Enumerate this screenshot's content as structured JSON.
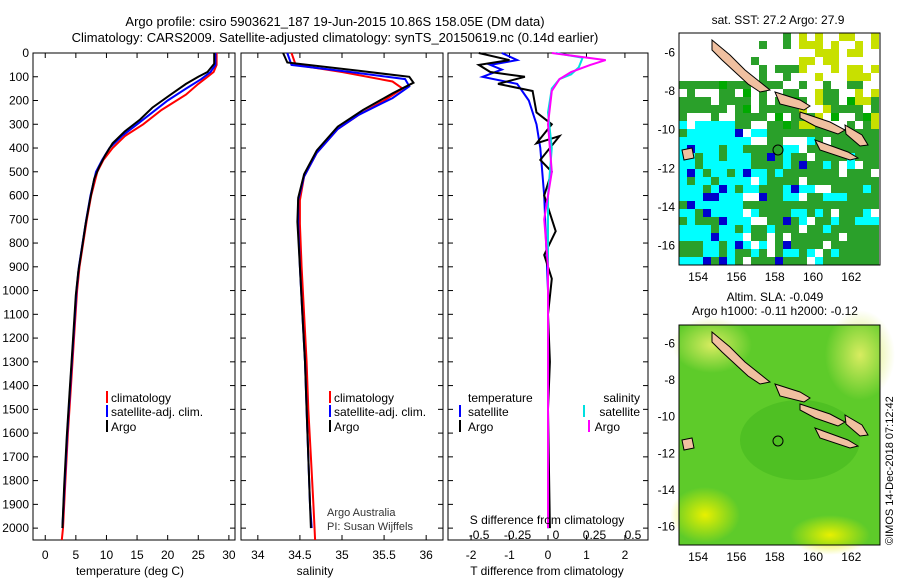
{
  "title": {
    "line1": "Argo profile: csiro 5903621_187 19-Jun-2015 10.86S 158.05E (DM data)",
    "line2": "Climatology: CARS2009. Satellite-adjusted climatology: synTS_20150619.nc (0.14d earlier)"
  },
  "credit": {
    "org": "Argo Australia",
    "pi": "PI: Susan Wijffels",
    "stamp": "©IMOS 14-Dec-2018 07:12:42"
  },
  "legends": {
    "climatology": "climatology",
    "satellite_adj": "satellite-adj. clim.",
    "argo": "Argo",
    "temperature": "temperature",
    "salinity": "salinity",
    "satellite": "satellite"
  },
  "colors": {
    "climatology": "#ff0000",
    "satellite": "#0000ff",
    "argo": "#000000",
    "sal_satellite": "#00e0e0",
    "sal_argo": "#ff00ff",
    "map_deep": "#2aa02a",
    "map_light": "#c8e000",
    "map_cyan": "#00ffff",
    "land": "#f0c0a0"
  },
  "map_titles": {
    "sst": "sat. SST: 27.2 Argo: 27.9",
    "sla1": "Altim. SLA: -0.049",
    "sla2": "Argo h1000: -0.11 h2000: -0.12"
  },
  "chart_data": [
    {
      "type": "line",
      "panel": "temperature",
      "xlabel": "temperature (deg C)",
      "ylabel": "",
      "xlim": [
        -2,
        31
      ],
      "ylim": [
        2050,
        0
      ],
      "xticks": [
        0,
        5,
        10,
        15,
        20,
        25,
        30
      ],
      "yticks": [
        0,
        100,
        200,
        300,
        400,
        500,
        600,
        700,
        800,
        900,
        1000,
        1100,
        1200,
        1300,
        1400,
        1500,
        1600,
        1700,
        1800,
        1900,
        2000
      ],
      "series": [
        {
          "name": "climatology",
          "color": "#ff0000",
          "points": [
            [
              28,
              0
            ],
            [
              28,
              50
            ],
            [
              27.5,
              80
            ],
            [
              26.5,
              100
            ],
            [
              25,
              130
            ],
            [
              23,
              175
            ],
            [
              19,
              240
            ],
            [
              16,
              300
            ],
            [
              13,
              350
            ],
            [
              11,
              400
            ],
            [
              9.5,
              450
            ],
            [
              8.5,
              500
            ],
            [
              7.5,
              600
            ],
            [
              6.8,
              700
            ],
            [
              6.2,
              800
            ],
            [
              5.6,
              900
            ],
            [
              5.2,
              1000
            ],
            [
              4.7,
              1200
            ],
            [
              4.2,
              1400
            ],
            [
              3.7,
              1600
            ],
            [
              3.3,
              1800
            ],
            [
              2.9,
              2000
            ],
            [
              2.7,
              2050
            ]
          ]
        },
        {
          "name": "satellite-adj. clim.",
          "color": "#0000ff",
          "points": [
            [
              27.8,
              0
            ],
            [
              27.8,
              50
            ],
            [
              27,
              80
            ],
            [
              25.5,
              110
            ],
            [
              23,
              150
            ],
            [
              20,
              200
            ],
            [
              17,
              260
            ],
            [
              15,
              300
            ],
            [
              12.5,
              350
            ],
            [
              10.5,
              400
            ],
            [
              9.3,
              450
            ],
            [
              8.3,
              500
            ],
            [
              7.4,
              600
            ],
            [
              6.7,
              700
            ],
            [
              6.1,
              800
            ],
            [
              5.5,
              900
            ],
            [
              5.1,
              1000
            ],
            [
              4.6,
              1200
            ],
            [
              4.1,
              1400
            ],
            [
              3.6,
              1600
            ],
            [
              3.2,
              1800
            ],
            [
              2.8,
              2000
            ]
          ]
        },
        {
          "name": "Argo",
          "color": "#000000",
          "points": [
            [
              27.6,
              0
            ],
            [
              27.6,
              45
            ],
            [
              26.5,
              80
            ],
            [
              25,
              100
            ],
            [
              23,
              130
            ],
            [
              20.5,
              175
            ],
            [
              17.5,
              230
            ],
            [
              15.5,
              280
            ],
            [
              13,
              330
            ],
            [
              11,
              380
            ],
            [
              9.8,
              430
            ],
            [
              8.8,
              480
            ],
            [
              8,
              530
            ],
            [
              7.3,
              620
            ],
            [
              6.6,
              720
            ],
            [
              6,
              820
            ],
            [
              5.4,
              920
            ],
            [
              5,
              1020
            ],
            [
              4.5,
              1220
            ],
            [
              4,
              1420
            ],
            [
              3.5,
              1620
            ],
            [
              3.1,
              1820
            ],
            [
              2.8,
              2000
            ]
          ]
        }
      ]
    },
    {
      "type": "line",
      "panel": "salinity",
      "xlabel": "salinity",
      "xlim": [
        33.8,
        36.2
      ],
      "ylim": [
        2050,
        0
      ],
      "xticks": [
        34,
        34.5,
        35,
        35.5,
        36
      ],
      "series": [
        {
          "name": "climatology",
          "color": "#ff0000",
          "points": [
            [
              34.4,
              0
            ],
            [
              34.45,
              50
            ],
            [
              35.0,
              80
            ],
            [
              35.6,
              120
            ],
            [
              35.72,
              150
            ],
            [
              35.5,
              200
            ],
            [
              35.2,
              260
            ],
            [
              34.95,
              320
            ],
            [
              34.7,
              420
            ],
            [
              34.55,
              520
            ],
            [
              34.5,
              620
            ],
            [
              34.5,
              720
            ],
            [
              34.52,
              900
            ],
            [
              34.55,
              1100
            ],
            [
              34.58,
              1300
            ],
            [
              34.6,
              1500
            ],
            [
              34.63,
              1700
            ],
            [
              34.66,
              1900
            ],
            [
              34.68,
              2050
            ]
          ]
        },
        {
          "name": "satellite-adj. clim.",
          "color": "#0000ff",
          "points": [
            [
              34.35,
              0
            ],
            [
              34.4,
              50
            ],
            [
              35.1,
              80
            ],
            [
              35.75,
              110
            ],
            [
              35.8,
              140
            ],
            [
              35.6,
              190
            ],
            [
              35.2,
              260
            ],
            [
              34.95,
              320
            ],
            [
              34.7,
              420
            ],
            [
              34.55,
              520
            ],
            [
              34.48,
              620
            ],
            [
              34.48,
              720
            ],
            [
              34.5,
              900
            ],
            [
              34.53,
              1100
            ],
            [
              34.56,
              1300
            ],
            [
              34.58,
              1500
            ],
            [
              34.6,
              1700
            ],
            [
              34.62,
              1900
            ],
            [
              34.64,
              2000
            ]
          ]
        },
        {
          "name": "Argo",
          "color": "#000000",
          "points": [
            [
              34.3,
              0
            ],
            [
              34.35,
              40
            ],
            [
              35.2,
              75
            ],
            [
              35.8,
              100
            ],
            [
              35.85,
              125
            ],
            [
              35.6,
              170
            ],
            [
              35.25,
              240
            ],
            [
              34.95,
              310
            ],
            [
              34.7,
              410
            ],
            [
              34.55,
              510
            ],
            [
              34.48,
              610
            ],
            [
              34.47,
              710
            ],
            [
              34.5,
              900
            ],
            [
              34.53,
              1100
            ],
            [
              34.56,
              1300
            ],
            [
              34.58,
              1500
            ],
            [
              34.6,
              1700
            ],
            [
              34.62,
              1900
            ],
            [
              34.63,
              2000
            ]
          ]
        }
      ]
    },
    {
      "type": "line",
      "panel": "difference",
      "xlabel": "T difference from climatology",
      "xlabel_top": "S difference from climatology",
      "xlim": [
        -2.6,
        2.6
      ],
      "ylim": [
        2050,
        0
      ],
      "xticks": [
        -2,
        -1,
        0,
        1,
        2
      ],
      "xticklabels_T": [
        "-2",
        "-1",
        "0",
        "1",
        "2"
      ],
      "xticklabels_S": [
        "-0.5",
        "-0.25",
        "0",
        "0.25",
        "0.5"
      ],
      "series": [
        {
          "name": "temperature satellite",
          "color": "#0000ff",
          "points": [
            [
              -1.2,
              0
            ],
            [
              -0.8,
              30
            ],
            [
              -1.5,
              50
            ],
            [
              -1.2,
              70
            ],
            [
              -1.7,
              100
            ],
            [
              -0.8,
              130
            ],
            [
              -0.5,
              200
            ],
            [
              -0.3,
              300
            ],
            [
              -0.2,
              400
            ],
            [
              -0.1,
              600
            ],
            [
              -0.05,
              800
            ],
            [
              0,
              1000
            ],
            [
              0,
              2000
            ]
          ]
        },
        {
          "name": "temperature Argo",
          "color": "#000000",
          "points": [
            [
              -1.8,
              0
            ],
            [
              -1.0,
              30
            ],
            [
              -1.8,
              50
            ],
            [
              -1.5,
              80
            ],
            [
              -0.6,
              100
            ],
            [
              -1.3,
              130
            ],
            [
              -0.4,
              160
            ],
            [
              -0.3,
              250
            ],
            [
              0.1,
              300
            ],
            [
              -0.3,
              380
            ],
            [
              0.3,
              350
            ],
            [
              -0.2,
              450
            ],
            [
              0.1,
              500
            ],
            [
              -0.1,
              600
            ],
            [
              0.2,
              750
            ],
            [
              -0.1,
              850
            ],
            [
              0.1,
              950
            ],
            [
              0,
              1100
            ],
            [
              0.05,
              1300
            ],
            [
              0,
              1500
            ],
            [
              0.05,
              2000
            ]
          ]
        },
        {
          "name": "salinity satellite",
          "color": "#00e0e0",
          "points": [
            [
              0.2,
              0
            ],
            [
              0.9,
              20
            ],
            [
              0.8,
              60
            ],
            [
              0.6,
              90
            ],
            [
              0.3,
              110
            ],
            [
              0.1,
              150
            ],
            [
              0,
              250
            ],
            [
              0.1,
              400
            ],
            [
              0,
              600
            ],
            [
              0,
              1000
            ],
            [
              0,
              2000
            ]
          ]
        },
        {
          "name": "salinity Argo",
          "color": "#ff00ff",
          "points": [
            [
              0.1,
              0
            ],
            [
              1.5,
              30
            ],
            [
              1.1,
              50
            ],
            [
              0.6,
              80
            ],
            [
              0.3,
              110
            ],
            [
              0.1,
              160
            ],
            [
              0,
              300
            ],
            [
              0.1,
              500
            ],
            [
              -0.1,
              700
            ],
            [
              0,
              900
            ],
            [
              0,
              2000
            ]
          ]
        }
      ]
    },
    {
      "type": "heatmap",
      "panel": "sst_map",
      "title": "sat. SST: 27.2 Argo: 27.9",
      "xlim": [
        153,
        163.5
      ],
      "ylim": [
        -17,
        -5
      ],
      "xticks": [
        154,
        156,
        158,
        160,
        162
      ],
      "yticks": [
        -6,
        -8,
        -10,
        -12,
        -14,
        -16
      ],
      "argo_position": [
        158.05,
        -10.86
      ]
    },
    {
      "type": "heatmap",
      "panel": "sla_map",
      "title": "Altim. SLA: -0.049",
      "subtitle": "Argo h1000: -0.11 h2000: -0.12",
      "xlim": [
        153,
        163.5
      ],
      "ylim": [
        -17,
        -5
      ],
      "xticks": [
        154,
        156,
        158,
        160,
        162
      ],
      "yticks": [
        -6,
        -8,
        -10,
        -12,
        -14,
        -16
      ],
      "argo_position": [
        158.05,
        -10.86
      ]
    }
  ]
}
